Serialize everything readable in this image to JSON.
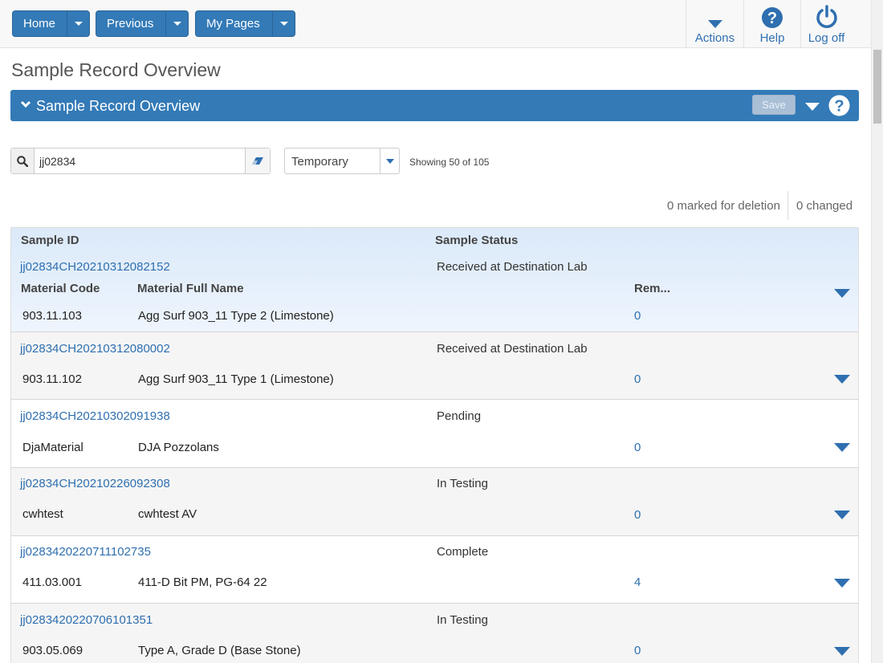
{
  "nav": {
    "home": "Home",
    "previous": "Previous",
    "my_pages": "My Pages",
    "actions": "Actions",
    "help": "Help",
    "logoff": "Log off"
  },
  "page": {
    "title": "Sample Record Overview",
    "panel_title": "Sample Record Overview",
    "save_label": "Save"
  },
  "filters": {
    "search_value": "jj02834",
    "select_value": "Temporary",
    "showing": "Showing 50 of 105"
  },
  "counters": {
    "marked": "0 marked for deletion",
    "changed": "0 changed"
  },
  "table": {
    "col_sample_id": "Sample ID",
    "col_sample_status": "Sample Status",
    "sub_material_code": "Material Code",
    "sub_material_full_name": "Material Full Name",
    "sub_rem": "Rem...",
    "rows": [
      {
        "id": "jj02834CH20210312082152",
        "status": "Received at Destination Lab",
        "code": "903.11.103",
        "name": "Agg Surf 903_11 Type 2 (Limestone)",
        "rem": "0"
      },
      {
        "id": "jj02834CH20210312080002",
        "status": "Received at Destination Lab",
        "code": "903.11.102",
        "name": "Agg Surf 903_11 Type 1 (Limestone)",
        "rem": "0"
      },
      {
        "id": "jj02834CH20210302091938",
        "status": "Pending",
        "code": "DjaMaterial",
        "name": "DJA Pozzolans",
        "rem": "0"
      },
      {
        "id": "jj02834CH20210226092308",
        "status": "In Testing",
        "code": "cwhtest",
        "name": "cwhtest AV",
        "rem": "0"
      },
      {
        "id": "jj0283420220711102735",
        "status": "Complete",
        "code": "411.03.001",
        "name": "411-D Bit PM, PG-64 22",
        "rem": "4"
      },
      {
        "id": "jj0283420220706101351",
        "status": "In Testing",
        "code": "903.05.069",
        "name": "Type A, Grade D (Base Stone)",
        "rem": "0"
      }
    ]
  }
}
